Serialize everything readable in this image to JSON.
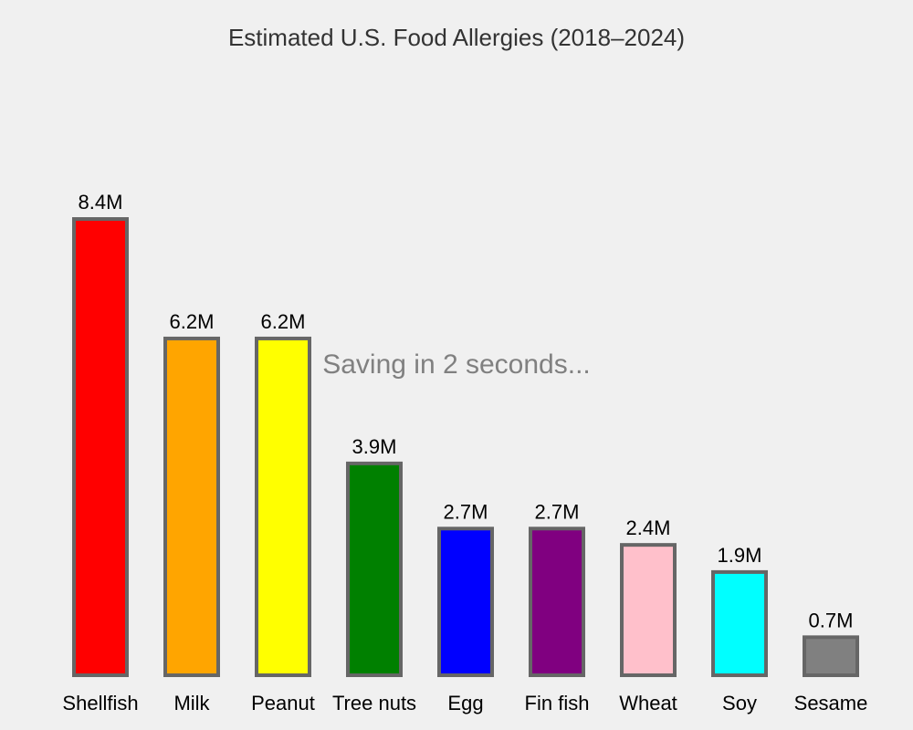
{
  "status": {
    "saving_message": "Saving in 2 seconds..."
  },
  "colors": {
    "background": "#f0f0f0",
    "bar_outline": "#666666",
    "title": "#333333",
    "status_text": "#808080"
  },
  "chart_data": {
    "type": "bar",
    "title": "Estimated U.S. Food Allergies (2018–2024)",
    "xlabel": "",
    "ylabel": "",
    "ylim": [
      0,
      10
    ],
    "grid": false,
    "legend": "none",
    "categories": [
      "Shellfish",
      "Milk",
      "Peanut",
      "Tree nuts",
      "Egg",
      "Fin fish",
      "Wheat",
      "Soy",
      "Sesame"
    ],
    "values": [
      8.4,
      6.2,
      6.2,
      3.9,
      2.7,
      2.7,
      2.4,
      1.9,
      0.7
    ],
    "value_labels": [
      "8.4M",
      "6.2M",
      "6.2M",
      "3.9M",
      "2.7M",
      "2.7M",
      "2.4M",
      "1.9M",
      "0.7M"
    ],
    "bar_colors": [
      "#ff0000",
      "#ffa500",
      "#ffff00",
      "#008000",
      "#0000ff",
      "#800080",
      "#ffc0cb",
      "#00ffff",
      "#808080"
    ]
  }
}
